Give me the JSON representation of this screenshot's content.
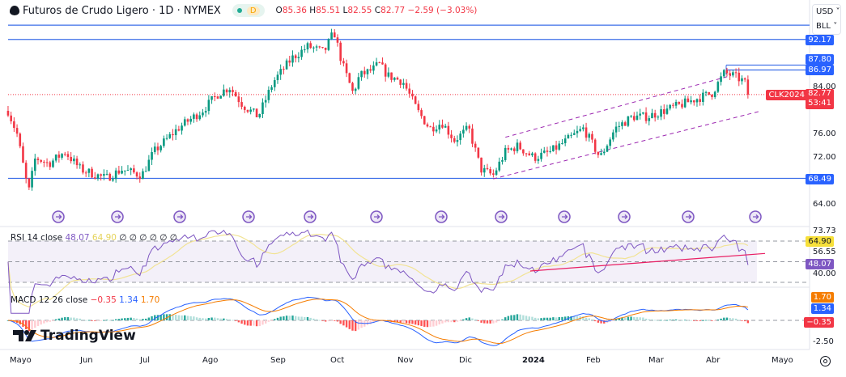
{
  "header": {
    "title": "Futuros de Crudo Ligero · 1D · NYMEX",
    "interval_badge": "D",
    "open_label": "O",
    "open": "85.36",
    "high_label": "H",
    "high": "85.51",
    "low_label": "L",
    "low": "82.55",
    "close_label": "C",
    "close": "82.77",
    "change": "−2.59 (−3.03%)"
  },
  "currency_select": "USD",
  "unit_select": "BLL",
  "rsi": {
    "label": "RSI 14 close",
    "value": "48.07",
    "ma_value": "64.90",
    "extras": "∅ ∅ ∅ ∅ ∅ ∅",
    "axis": [
      "73.73",
      "56.55",
      "40.00"
    ],
    "labels": {
      "ma": "64.90",
      "rsi": "48.07"
    }
  },
  "macd": {
    "label": "MACD 12 26 close",
    "hist": "−0.35",
    "macd": "1.34",
    "signal": "1.70",
    "axis": [
      "-2.50"
    ],
    "labels": {
      "signal": "1.70",
      "macd": "1.34",
      "hist": "−0.35"
    }
  },
  "price_axis": [
    "84.00",
    "76.00",
    "72.00",
    "64.00"
  ],
  "price_labels": {
    "level1": "92.17",
    "level2": "87.80",
    "level3": "86.97",
    "level4": "68.49",
    "symbol": "CLK2024",
    "last": "82.77",
    "countdown": "53:41"
  },
  "time_axis": [
    "Mayo",
    "Jun",
    "Jul",
    "Ago",
    "Sep",
    "Oct",
    "Nov",
    "Dic",
    "2024",
    "Feb",
    "Mar",
    "Abr",
    "Mayo"
  ],
  "logo": "TradingView",
  "colors": {
    "up": "#089981",
    "down": "#f23645",
    "level_line": "#3b6ee8",
    "rsi": "#7e57c2",
    "rsi_ma": "#f2e394",
    "macd": "#2962ff",
    "signal": "#f57c00",
    "channel": "#9c27b0"
  },
  "chart_data": {
    "type": "candlestick",
    "title": "Futuros de Crudo Ligero · 1D · NYMEX",
    "ylim": [
      62,
      96
    ],
    "horizontal_levels": [
      94.6,
      92.17,
      87.8,
      86.97,
      68.49
    ],
    "last_price": 82.77,
    "approx_close_path": [
      [
        "2023-04-26",
        80
      ],
      [
        "2023-04-30",
        76
      ],
      [
        "2023-05-05",
        66
      ],
      [
        "2023-05-08",
        72
      ],
      [
        "2023-05-14",
        71
      ],
      [
        "2023-05-21",
        73
      ],
      [
        "2023-05-28",
        70
      ],
      [
        "2023-06-09",
        68.5
      ],
      [
        "2023-06-17",
        70
      ],
      [
        "2023-06-27",
        69
      ],
      [
        "2023-07-03",
        73
      ],
      [
        "2023-07-15",
        77
      ],
      [
        "2023-07-27",
        80
      ],
      [
        "2023-08-04",
        83
      ],
      [
        "2023-08-09",
        84
      ],
      [
        "2023-08-15",
        81
      ],
      [
        "2023-08-22",
        79
      ],
      [
        "2023-08-29",
        85
      ],
      [
        "2023-09-07",
        89
      ],
      [
        "2023-09-15",
        91
      ],
      [
        "2023-09-23",
        90
      ],
      [
        "2023-09-28",
        93.5
      ],
      [
        "2023-10-02",
        88
      ],
      [
        "2023-10-07",
        83
      ],
      [
        "2023-10-10",
        86
      ],
      [
        "2023-10-16",
        87
      ],
      [
        "2023-10-19",
        88
      ],
      [
        "2023-10-23",
        86
      ],
      [
        "2023-10-30",
        85
      ],
      [
        "2023-11-06",
        80
      ],
      [
        "2023-11-12",
        77
      ],
      [
        "2023-11-18",
        78
      ],
      [
        "2023-11-24",
        75
      ],
      [
        "2023-12-01",
        77
      ],
      [
        "2023-12-07",
        70
      ],
      [
        "2023-12-13",
        69
      ],
      [
        "2023-12-19",
        73
      ],
      [
        "2023-12-25",
        74
      ],
      [
        "2024-01-02",
        72
      ],
      [
        "2024-01-10",
        73
      ],
      [
        "2024-01-18",
        75
      ],
      [
        "2024-01-26",
        77
      ],
      [
        "2024-02-03",
        72
      ],
      [
        "2024-02-10",
        77
      ],
      [
        "2024-02-18",
        79
      ],
      [
        "2024-02-25",
        79
      ],
      [
        "2024-03-04",
        80
      ],
      [
        "2024-03-13",
        81
      ],
      [
        "2024-03-21",
        82
      ],
      [
        "2024-03-30",
        83
      ],
      [
        "2024-04-05",
        86.5
      ],
      [
        "2024-04-09",
        86
      ],
      [
        "2024-04-14",
        85
      ],
      [
        "2024-04-17",
        82.77
      ]
    ],
    "channel": {
      "lower": [
        [
          "2023-12-13",
          68.4
        ],
        [
          "2024-04-22",
          80
        ]
      ],
      "upper": [
        [
          "2023-12-19",
          75.5
        ],
        [
          "2024-04-08",
          86
        ]
      ]
    },
    "rsi_range": [
      30,
      70
    ]
  }
}
